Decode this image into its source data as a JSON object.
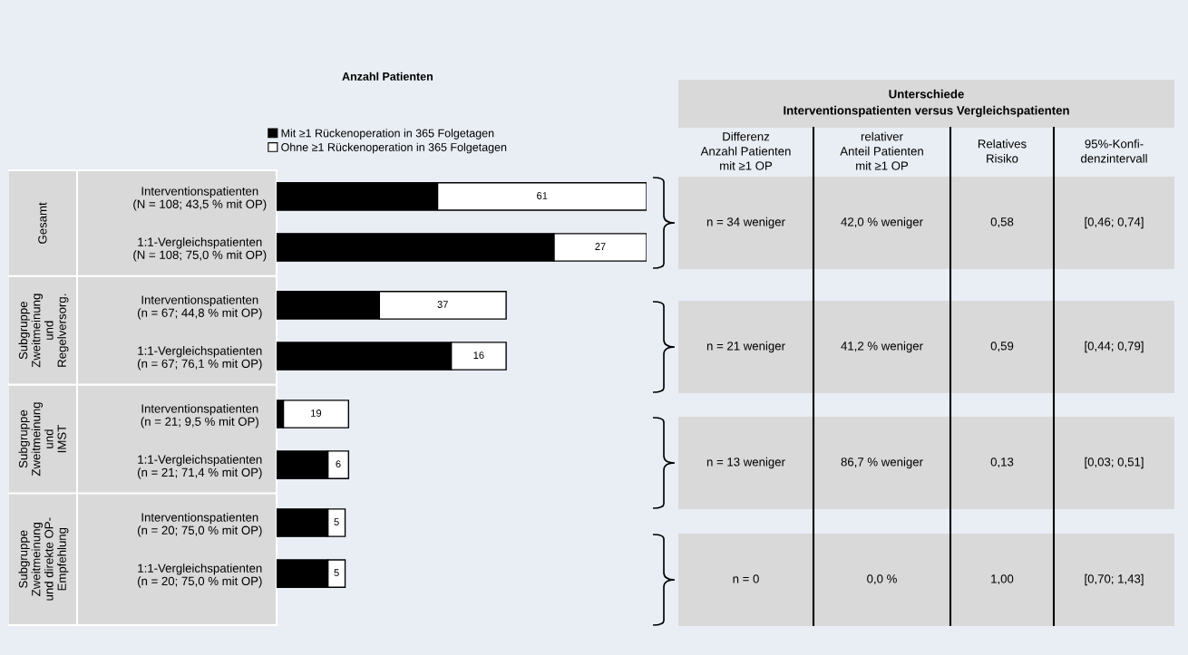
{
  "chart_data": [
    {
      "type": "bar",
      "orientation": "horizontal",
      "stacked": true,
      "title": "Anzahl Patienten",
      "legend": "top",
      "categories": [
        "Interventionspatienten\n(N = 108; 43,5 % mit OP)",
        "1:1-Vergleichspatienten\n(N = 108; 75,0 % mit OP)",
        "Interventionspatienten\n(n = 67; 44,8 % mit OP)",
        "1:1-Vergleichspatienten\n(n = 67; 76,1 % mit OP)",
        "Interventionspatienten\n(n = 21; 9,5 % mit OP)",
        "1:1-Vergleichspatienten\n(n = 21; 71,4 % mit OP)",
        "Interventionspatienten\n(n = 20; 75,0 % mit OP)",
        "1:1-Vergleichspatienten\n(n = 20; 75,0 % mit OP)"
      ],
      "series": [
        {
          "name": "Mit ≥1 Rückenoperation in 365 Folgetagen",
          "color": "#000000",
          "values": [
            47,
            81,
            30,
            51,
            2,
            15,
            15,
            15
          ]
        },
        {
          "name": "Ohne ≥1 Rückenoperation in 365 Folgetagen",
          "color": "#ffffff",
          "values": [
            61,
            27,
            37,
            16,
            19,
            6,
            5,
            5
          ],
          "value_labels": [
            "61",
            "27",
            "37",
            "16",
            "19",
            "6",
            "5",
            "5"
          ]
        }
      ],
      "annotations": [
        "Gesamt",
        "Subgruppe\nZweitmeinung\nund\nRegelversorg.",
        "Subgruppe\nZweitmeinung\nund\nIMST",
        "Subgruppe\nZweitmeinung\nund direkte OP-\nEmpfehlung"
      ]
    },
    {
      "type": "other",
      "title": "Unterschiede\nInterventionspatienten versus Vergleichspatienten",
      "categories": [
        "Differenz\nAnzahl Patienten\nmit ≥1 OP",
        "relativer\nAnteil Patienten\nmit ≥1 OP",
        "Relatives\nRisiko",
        "95%-Konfi-\ndenzintervall"
      ],
      "cell_labels": [
        [
          "n = 34 weniger",
          "42,0 % weniger",
          "0,58",
          "[0,46; 0,74]"
        ],
        [
          "n = 21 weniger",
          "41,2 % weniger",
          "0,59",
          "[0,44; 0,79]"
        ],
        [
          "n = 13 weniger",
          "86,7 % weniger",
          "0,13",
          "[0,03; 0,51]"
        ],
        [
          "n = 0",
          "0,0 %",
          "1,00",
          "[0,70; 1,43]"
        ]
      ]
    }
  ]
}
